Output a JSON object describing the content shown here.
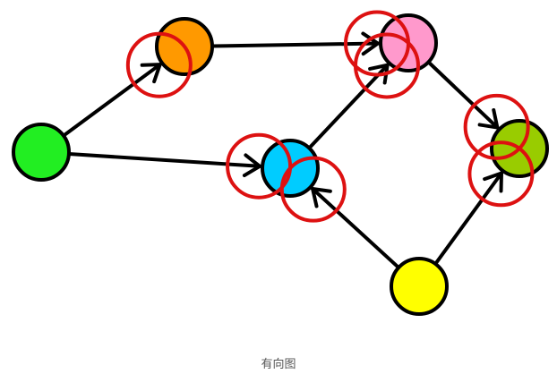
{
  "figure": {
    "caption": "有向图"
  },
  "graph": {
    "directed": true,
    "nodes": [
      {
        "id": "green",
        "fill": "#22ee22"
      },
      {
        "id": "orange",
        "fill": "#ff9900"
      },
      {
        "id": "pink",
        "fill": "#ff99cc"
      },
      {
        "id": "cyan",
        "fill": "#00ccff"
      },
      {
        "id": "olive-green",
        "fill": "#99cc00"
      },
      {
        "id": "yellow",
        "fill": "#ffff00"
      }
    ],
    "edges": [
      {
        "from": "green",
        "to": "orange",
        "highlighted_head": true
      },
      {
        "from": "green",
        "to": "cyan",
        "highlighted_head": true
      },
      {
        "from": "orange",
        "to": "pink",
        "highlighted_head": true
      },
      {
        "from": "cyan",
        "to": "pink",
        "highlighted_head": true
      },
      {
        "from": "pink",
        "to": "olive-green",
        "highlighted_head": true
      },
      {
        "from": "yellow",
        "to": "cyan",
        "highlighted_head": true
      },
      {
        "from": "yellow",
        "to": "olive-green",
        "highlighted_head": true
      }
    ],
    "colors": {
      "edge": "#000000",
      "node_stroke": "#000000",
      "highlight": "#dd1111"
    }
  }
}
